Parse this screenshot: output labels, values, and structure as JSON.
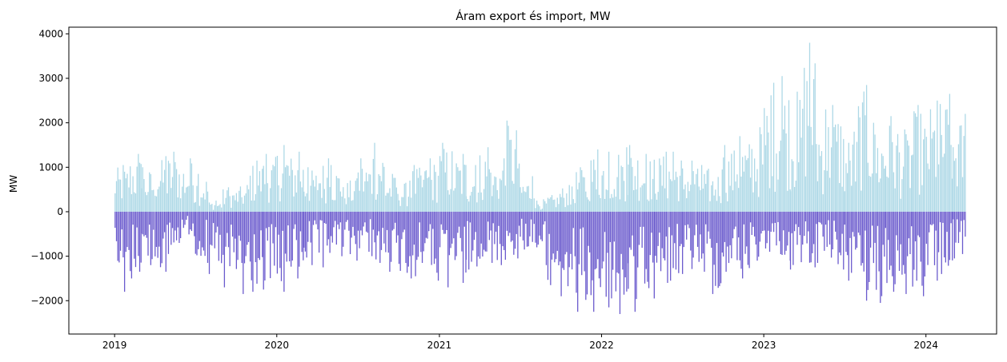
{
  "chart_data": {
    "type": "bar",
    "title": "Áram export és import, MW",
    "xlabel": "",
    "ylabel": "MW",
    "xlim": [
      "2018-09-20",
      "2024-06-08"
    ],
    "ylim": [
      -2750,
      4150
    ],
    "grid": false,
    "x_ticks": [
      {
        "date": "2019-01-01",
        "label": "2019"
      },
      {
        "date": "2020-01-01",
        "label": "2020"
      },
      {
        "date": "2021-01-01",
        "label": "2021"
      },
      {
        "date": "2022-01-01",
        "label": "2022"
      },
      {
        "date": "2023-01-01",
        "label": "2023"
      },
      {
        "date": "2024-01-01",
        "label": "2024"
      }
    ],
    "y_ticks": [
      {
        "value": -2000,
        "label": "−2000"
      },
      {
        "value": -1000,
        "label": "−1000"
      },
      {
        "value": 0,
        "label": "0"
      },
      {
        "value": 1000,
        "label": "1000"
      },
      {
        "value": 2000,
        "label": "2000"
      },
      {
        "value": 3000,
        "label": "3000"
      },
      {
        "value": 4000,
        "label": "4000"
      }
    ],
    "colors": {
      "export": "#add8e6",
      "import": "#6a5acd"
    },
    "series": [
      {
        "role": "export",
        "color": "#add8e6",
        "x": [
          "2019-01",
          "2019-02",
          "2019-03",
          "2019-04",
          "2019-05",
          "2019-06",
          "2019-07",
          "2019-08",
          "2019-09",
          "2019-10",
          "2019-11",
          "2019-12",
          "2020-01",
          "2020-02",
          "2020-03",
          "2020-04",
          "2020-05",
          "2020-06",
          "2020-07",
          "2020-08",
          "2020-09",
          "2020-10",
          "2020-11",
          "2020-12",
          "2021-01",
          "2021-02",
          "2021-03",
          "2021-04",
          "2021-05",
          "2021-06",
          "2021-07",
          "2021-08",
          "2021-09",
          "2021-10",
          "2021-11",
          "2021-12",
          "2022-01",
          "2022-02",
          "2022-03",
          "2022-04",
          "2022-05",
          "2022-06",
          "2022-07",
          "2022-08",
          "2022-09",
          "2022-10",
          "2022-11",
          "2022-12",
          "2023-01",
          "2023-02",
          "2023-03",
          "2023-04",
          "2023-05",
          "2023-06",
          "2023-07",
          "2023-08",
          "2023-09",
          "2023-10",
          "2023-11",
          "2023-12",
          "2024-01",
          "2024-02",
          "2024-03"
        ],
        "values": [
          1050,
          1300,
          1000,
          1250,
          1350,
          1200,
          850,
          250,
          550,
          600,
          1150,
          1300,
          1500,
          1350,
          1000,
          1200,
          1050,
          750,
          1200,
          1550,
          850,
          700,
          1050,
          1200,
          1550,
          1300,
          1050,
          1450,
          1200,
          2050,
          800,
          300,
          400,
          600,
          1000,
          1400,
          1350,
          1450,
          1500,
          1300,
          1350,
          1350,
          1150,
          1050,
          950,
          1500,
          1700,
          1900,
          2900,
          3050,
          2700,
          3800,
          2300,
          2400,
          1800,
          2850,
          2000,
          2150,
          1850,
          2400,
          2500,
          2650,
          2200
        ]
      },
      {
        "role": "import",
        "color": "#6a5acd",
        "x": [
          "2019-01",
          "2019-02",
          "2019-03",
          "2019-04",
          "2019-05",
          "2019-06",
          "2019-07",
          "2019-08",
          "2019-09",
          "2019-10",
          "2019-11",
          "2019-12",
          "2020-01",
          "2020-02",
          "2020-03",
          "2020-04",
          "2020-05",
          "2020-06",
          "2020-07",
          "2020-08",
          "2020-09",
          "2020-10",
          "2020-11",
          "2020-12",
          "2021-01",
          "2021-02",
          "2021-03",
          "2021-04",
          "2021-05",
          "2021-06",
          "2021-07",
          "2021-08",
          "2021-09",
          "2021-10",
          "2021-11",
          "2021-12",
          "2022-01",
          "2022-02",
          "2022-03",
          "2022-04",
          "2022-05",
          "2022-06",
          "2022-07",
          "2022-08",
          "2022-09",
          "2022-10",
          "2022-11",
          "2022-12",
          "2023-01",
          "2023-02",
          "2023-03",
          "2023-04",
          "2023-05",
          "2023-06",
          "2023-07",
          "2023-08",
          "2023-09",
          "2023-10",
          "2023-11",
          "2023-12",
          "2024-01",
          "2024-02",
          "2024-03"
        ],
        "values": [
          -1800,
          -1500,
          -1200,
          -1350,
          -950,
          -550,
          -1150,
          -1400,
          -1700,
          -1850,
          -1800,
          -1750,
          -1800,
          -1500,
          -1200,
          -1250,
          -1000,
          -1100,
          -900,
          -1150,
          -1350,
          -1500,
          -1450,
          -1550,
          -1700,
          -1600,
          -1300,
          -1150,
          -1200,
          -1050,
          -850,
          -1200,
          -1650,
          -1900,
          -2250,
          -2250,
          -2150,
          -2300,
          -2250,
          -1950,
          -1600,
          -1550,
          -1400,
          -1350,
          -1850,
          -1350,
          -1500,
          -1100,
          -900,
          -1100,
          -1300,
          -1250,
          -1150,
          -1300,
          -1550,
          -2000,
          -2050,
          -1800,
          -1850,
          -1900,
          -1550,
          -1400,
          -1050
        ]
      }
    ]
  }
}
